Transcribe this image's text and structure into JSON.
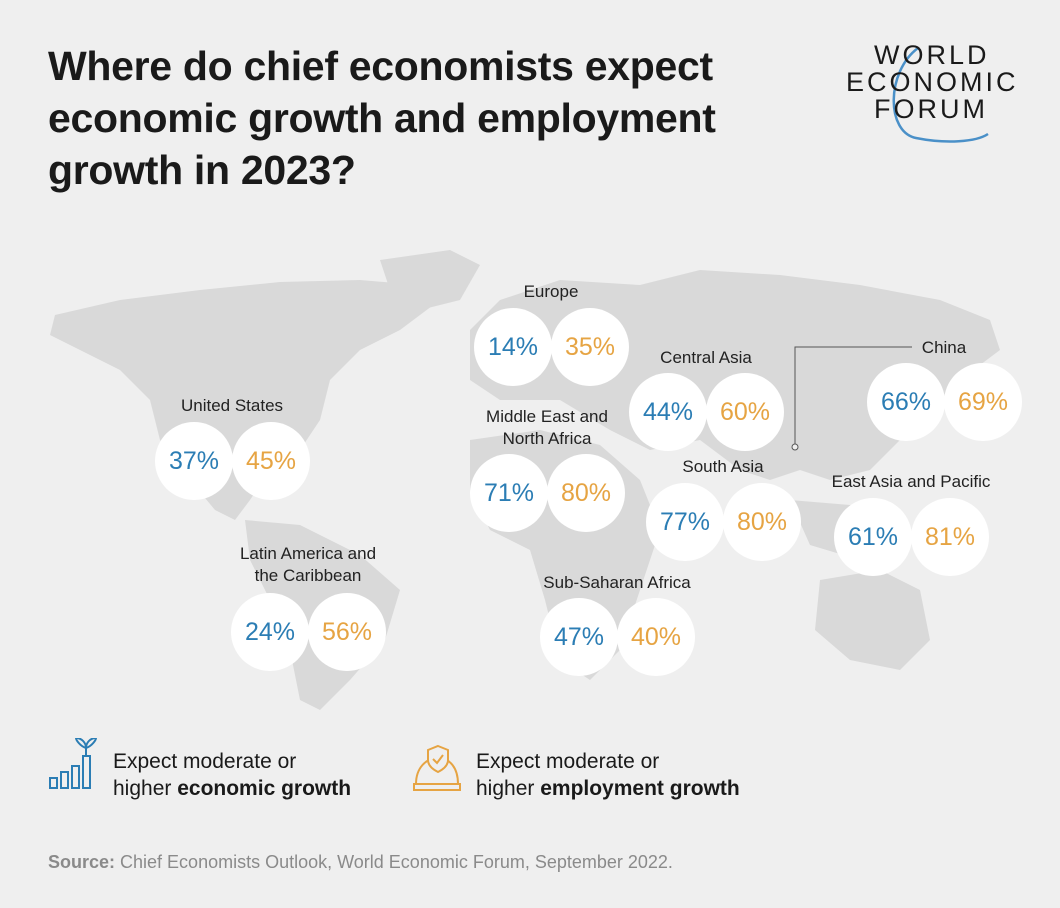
{
  "title": "Where do chief economists expect economic growth and employment growth in 2023?",
  "logo": {
    "lines": [
      "WORLD",
      "ECONOMIC",
      "FORUM"
    ]
  },
  "colors": {
    "economic_growth": "#2b7db4",
    "employment_growth": "#e6a443",
    "map": "#d9d9d9",
    "background": "#efefef"
  },
  "chart_data": {
    "type": "map-bubbles",
    "series": [
      {
        "name": "Expect moderate or higher economic growth",
        "color": "#2b7db4"
      },
      {
        "name": "Expect moderate or higher employment growth",
        "color": "#e6a443"
      }
    ],
    "regions": [
      {
        "name": "United States",
        "economic": "37%",
        "employment": "45%"
      },
      {
        "name": "Latin America and the Caribbean",
        "economic": "24%",
        "employment": "56%"
      },
      {
        "name": "Europe",
        "economic": "14%",
        "employment": "35%"
      },
      {
        "name": "Middle East and North Africa",
        "economic": "71%",
        "employment": "80%"
      },
      {
        "name": "Central Asia",
        "economic": "44%",
        "employment": "60%"
      },
      {
        "name": "China",
        "economic": "66%",
        "employment": "69%"
      },
      {
        "name": "South Asia",
        "economic": "77%",
        "employment": "80%"
      },
      {
        "name": "East Asia and Pacific",
        "economic": "61%",
        "employment": "81%"
      },
      {
        "name": "Sub-Saharan Africa",
        "economic": "47%",
        "employment": "40%"
      }
    ]
  },
  "legend": {
    "economic": {
      "icon": "plant-bar-chart-icon",
      "line1": "Expect moderate or",
      "line2_plain": "higher ",
      "line2_bold": "economic growth"
    },
    "employment": {
      "icon": "hard-hat-shield-icon",
      "line1": "Expect moderate or",
      "line2_plain": "higher ",
      "line2_bold": "employment growth"
    }
  },
  "source": {
    "label": "Source:",
    "text": " Chief Economists Outlook, World Economic Forum, September 2022."
  }
}
